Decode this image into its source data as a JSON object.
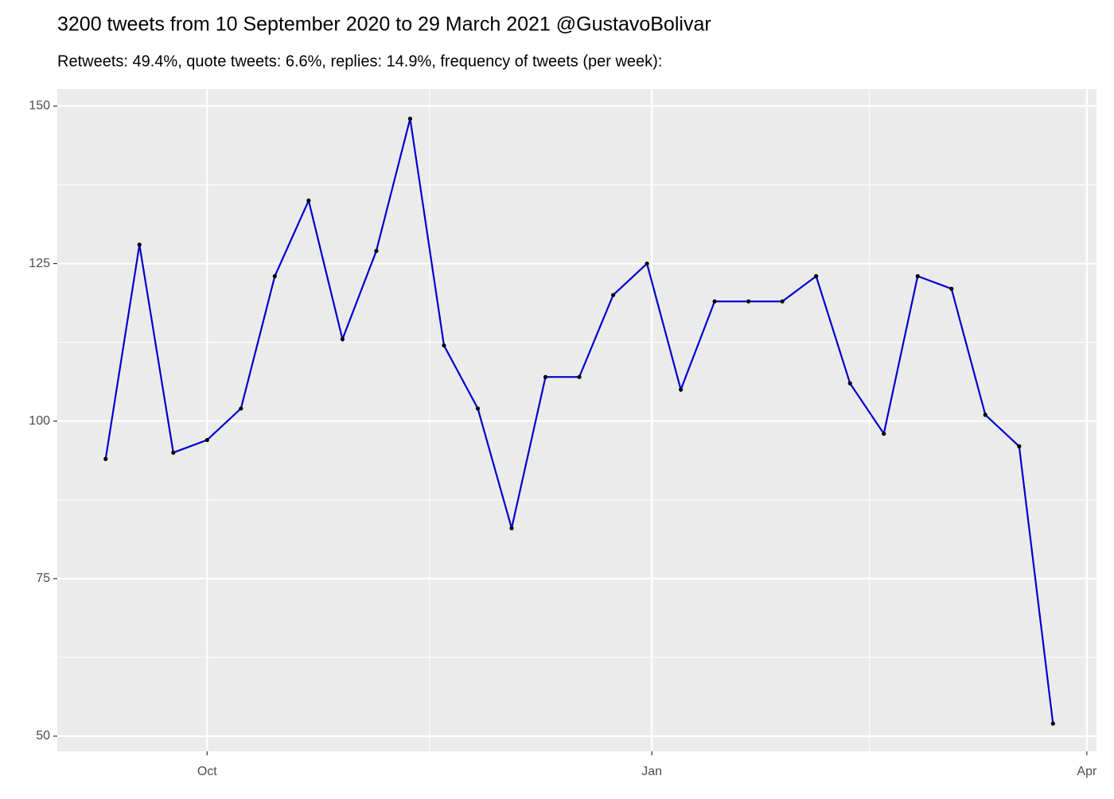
{
  "chart_data": {
    "type": "line",
    "title": "3200 tweets from 10 September 2020 to 29 March 2021 @GustavoBolivar",
    "subtitle": "Retweets: 49.4%, quote tweets: 6.6%, replies: 14.9%, frequency of tweets (per week):",
    "x": [
      "2020-09-10",
      "2020-09-17",
      "2020-09-24",
      "2020-10-01",
      "2020-10-08",
      "2020-10-15",
      "2020-10-22",
      "2020-10-29",
      "2020-11-05",
      "2020-11-12",
      "2020-11-19",
      "2020-11-26",
      "2020-12-03",
      "2020-12-10",
      "2020-12-17",
      "2020-12-24",
      "2020-12-31",
      "2021-01-07",
      "2021-01-14",
      "2021-01-21",
      "2021-01-28",
      "2021-02-04",
      "2021-02-11",
      "2021-02-18",
      "2021-02-25",
      "2021-03-04",
      "2021-03-11",
      "2021-03-18",
      "2021-03-25"
    ],
    "series": [
      {
        "color": "#0000cd",
        "point_color": "#000000",
        "values": [
          94,
          128,
          95,
          97,
          102,
          123,
          135,
          113,
          127,
          148,
          112,
          102,
          83,
          107,
          107,
          120,
          125,
          105,
          119,
          119,
          119,
          123,
          106,
          98,
          123,
          121,
          101,
          96,
          52
        ]
      }
    ],
    "xlim": [
      "2020-08-31",
      "2021-04-03"
    ],
    "xticks": [
      {
        "value": "2020-10-01",
        "label": "Oct"
      },
      {
        "value": "2021-01-01",
        "label": "Jan"
      },
      {
        "value": "2021-04-01",
        "label": "Apr"
      }
    ],
    "ylim": [
      47.6,
      152.7
    ],
    "yticks": [
      50,
      75,
      100,
      125,
      150
    ],
    "grid": true
  }
}
